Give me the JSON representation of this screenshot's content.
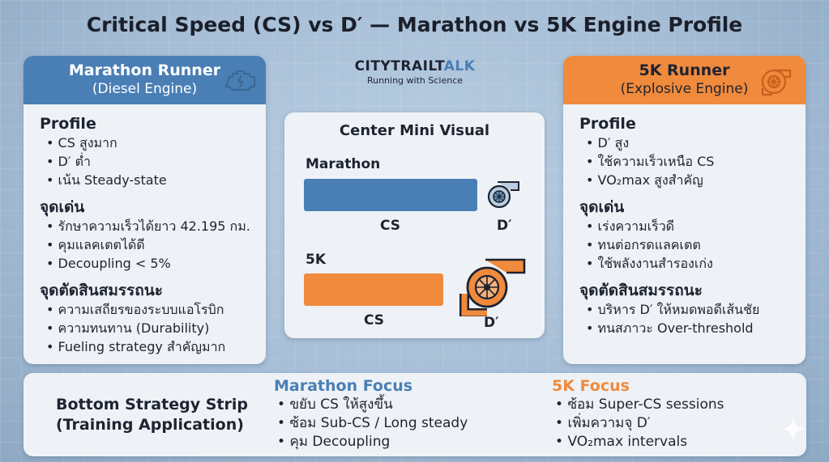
{
  "title": "Critical Speed (CS) vs D′ — Marathon vs 5K Engine Profile",
  "brand": {
    "name_main": "CITYTRAILT",
    "name_accent": "ALK",
    "tagline": "Running with Science"
  },
  "colors": {
    "marathon": "#4a7fb5",
    "fivek": "#f08a3c",
    "panel": "#eef2f7",
    "text": "#1e2330"
  },
  "marathon_card": {
    "title": "Marathon Runner",
    "subtitle": "(Diesel Engine)",
    "icon": "engine-icon",
    "sections": [
      {
        "title": "Profile",
        "items": [
          "CS สูงมาก",
          "D′ ต่ำ",
          "เน้น Steady-state"
        ]
      },
      {
        "title": "จุดเด่น",
        "items": [
          "รักษาความเร็วได้ยาว 42.195 กม.",
          "คุมแลคเตตได้ดี",
          "Decoupling < 5%"
        ]
      },
      {
        "title": "จุดตัดสินสมรรถนะ",
        "items": [
          "ความเสถียรของระบบแอโรบิก",
          "ความทนทาน (Durability)",
          "Fueling strategy สำคัญมาก"
        ]
      }
    ]
  },
  "fivek_card": {
    "title": "5K Runner",
    "subtitle": "(Explosive Engine)",
    "icon": "turbo-icon",
    "sections": [
      {
        "title": "Profile",
        "items": [
          "D′ สูง",
          "ใช้ความเร็วเหนือ CS",
          "VO₂max สูงสำคัญ"
        ]
      },
      {
        "title": "จุดเด่น",
        "items": [
          "เร่งความเร็วดี",
          "ทนต่อกรดแลคเตต",
          "ใช้พลังงานสำรองเก่ง"
        ]
      },
      {
        "title": "จุดตัดสินสมรรถนะ",
        "items": [
          "บริหาร D′ ให้หมดพอดีเส้นชัย",
          "ทนสภาวะ Over-threshold"
        ]
      }
    ]
  },
  "mini_visual": {
    "title": "Center Mini Visual",
    "marathon_label": "Marathon",
    "fivek_label": "5K",
    "cs_label": "CS",
    "d_label": "D′"
  },
  "strip": {
    "title_line1": "Bottom Strategy Strip",
    "title_line2": "(Training Application)",
    "marathon_focus": {
      "title": "Marathon Focus",
      "items": [
        "ขยับ CS ให้สูงขึ้น",
        "ซ้อม Sub-CS / Long steady",
        "คุม Decoupling"
      ]
    },
    "fivek_focus": {
      "title": "5K Focus",
      "items": [
        "ซ้อม Super-CS sessions",
        "เพิ่มความจุ D′",
        "VO₂max intervals"
      ]
    }
  }
}
